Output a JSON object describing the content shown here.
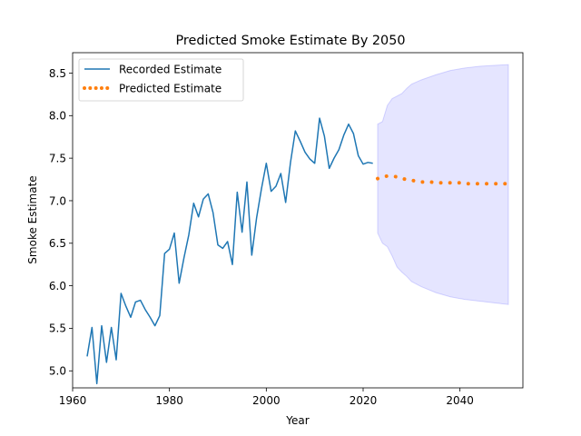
{
  "chart_data": {
    "type": "line",
    "title": "Predicted Smoke Estimate By 2050",
    "xlabel": "Year",
    "ylabel": "Smoke Estimate",
    "xlim": [
      1960,
      2053
    ],
    "ylim": [
      4.8,
      8.74
    ],
    "xticks": [
      1960,
      1980,
      2000,
      2020,
      2040
    ],
    "yticks": [
      5.0,
      5.5,
      6.0,
      6.5,
      7.0,
      7.5,
      8.0,
      8.5
    ],
    "grid": false,
    "legend_position": "top-left",
    "series": [
      {
        "name": "Recorded Estimate",
        "style": "solid",
        "color": "#1f77b4",
        "x": [
          1963,
          1964,
          1965,
          1966,
          1967,
          1968,
          1969,
          1970,
          1971,
          1972,
          1973,
          1974,
          1975,
          1976,
          1977,
          1978,
          1979,
          1980,
          1981,
          1982,
          1983,
          1984,
          1985,
          1986,
          1987,
          1988,
          1989,
          1990,
          1991,
          1992,
          1993,
          1994,
          1995,
          1996,
          1997,
          1998,
          1999,
          2000,
          2001,
          2002,
          2003,
          2004,
          2005,
          2006,
          2007,
          2008,
          2009,
          2010,
          2011,
          2012,
          2013,
          2014,
          2015,
          2016,
          2017,
          2018,
          2019,
          2020,
          2021,
          2022
        ],
        "y": [
          5.17,
          5.51,
          4.85,
          5.53,
          5.1,
          5.51,
          5.13,
          5.91,
          5.76,
          5.63,
          5.81,
          5.83,
          5.72,
          5.63,
          5.53,
          5.65,
          6.38,
          6.43,
          6.62,
          6.03,
          6.33,
          6.6,
          6.97,
          6.81,
          7.02,
          7.08,
          6.86,
          6.48,
          6.44,
          6.52,
          6.25,
          7.1,
          6.63,
          7.22,
          6.36,
          6.8,
          7.14,
          7.44,
          7.11,
          7.17,
          7.32,
          6.98,
          7.45,
          7.82,
          7.7,
          7.57,
          7.49,
          7.44,
          7.97,
          7.76,
          7.38,
          7.5,
          7.6,
          7.77,
          7.9,
          7.79,
          7.53,
          7.43,
          7.45,
          7.44
        ]
      },
      {
        "name": "Predicted Estimate",
        "style": "dotted",
        "color": "#ff7f0e",
        "x": [
          2023,
          2024,
          2025,
          2026,
          2027,
          2028,
          2029,
          2030,
          2031,
          2032,
          2033,
          2034,
          2035,
          2036,
          2037,
          2038,
          2039,
          2040,
          2041,
          2042,
          2043,
          2044,
          2045,
          2046,
          2047,
          2048,
          2049,
          2050
        ],
        "y": [
          7.26,
          7.28,
          7.29,
          7.29,
          7.28,
          7.26,
          7.25,
          7.24,
          7.23,
          7.22,
          7.22,
          7.22,
          7.21,
          7.21,
          7.21,
          7.21,
          7.21,
          7.21,
          7.2,
          7.2,
          7.2,
          7.2,
          7.2,
          7.2,
          7.2,
          7.2,
          7.2,
          7.2
        ]
      }
    ],
    "confidence_band": {
      "color": "#0000ff",
      "x": [
        2023,
        2024,
        2025,
        2026,
        2027,
        2028,
        2029,
        2030,
        2032,
        2035,
        2038,
        2041,
        2044,
        2047,
        2050
      ],
      "upper": [
        7.9,
        7.93,
        8.12,
        8.2,
        8.23,
        8.26,
        8.32,
        8.37,
        8.42,
        8.48,
        8.53,
        8.56,
        8.58,
        8.59,
        8.6
      ],
      "lower": [
        6.62,
        6.5,
        6.46,
        6.35,
        6.22,
        6.16,
        6.11,
        6.05,
        5.99,
        5.92,
        5.87,
        5.84,
        5.82,
        5.8,
        5.78
      ]
    }
  }
}
